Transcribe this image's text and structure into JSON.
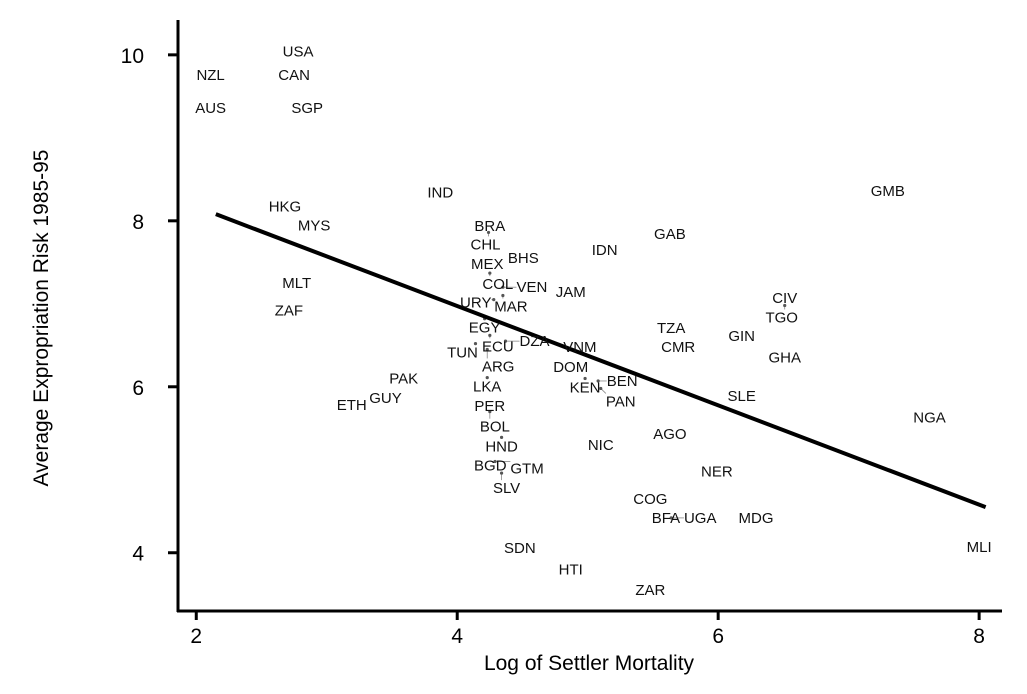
{
  "chart_data": {
    "type": "scatter",
    "title": "",
    "xlabel": "Log of Settler Mortality",
    "ylabel": "Average Expropriation Risk 1985-95",
    "xlim": [
      1.86,
      8.16
    ],
    "ylim": [
      3.31,
      10.42
    ],
    "xticks": [
      2,
      4,
      6,
      8
    ],
    "yticks": [
      4,
      6,
      8,
      10
    ],
    "grid": false,
    "points": [
      {
        "label": "USA",
        "x": 2.78,
        "y": 10.04
      },
      {
        "label": "NZL",
        "x": 2.11,
        "y": 9.76
      },
      {
        "label": "CAN",
        "x": 2.75,
        "y": 9.76
      },
      {
        "label": "AUS",
        "x": 2.11,
        "y": 9.36
      },
      {
        "label": "SGP",
        "x": 2.85,
        "y": 9.36
      },
      {
        "label": "IND",
        "x": 3.87,
        "y": 8.34
      },
      {
        "label": "HKG",
        "x": 2.68,
        "y": 8.17
      },
      {
        "label": "MYS",
        "x": 2.85,
        "y": 7.99
      },
      {
        "label": "GMB",
        "x": 7.3,
        "y": 8.36
      },
      {
        "label": "BRA",
        "x": 4.25,
        "y": 7.94
      },
      {
        "label": "CHL",
        "x": 4.24,
        "y": 7.86
      },
      {
        "label": "GAB",
        "x": 5.63,
        "y": 7.84
      },
      {
        "label": "IDN",
        "x": 5.13,
        "y": 7.65
      },
      {
        "label": "MEX",
        "x": 4.23,
        "y": 7.55
      },
      {
        "label": "BHS",
        "x": 4.43,
        "y": 7.55
      },
      {
        "label": "COL",
        "x": 4.25,
        "y": 7.37
      },
      {
        "label": "MLT",
        "x": 2.77,
        "y": 7.25
      },
      {
        "label": "JAM",
        "x": 4.87,
        "y": 7.14
      },
      {
        "label": "VEN",
        "x": 4.35,
        "y": 7.2
      },
      {
        "label": "MAR",
        "x": 4.35,
        "y": 7.1
      },
      {
        "label": "URY",
        "x": 4.28,
        "y": 7.05
      },
      {
        "label": "CIV",
        "x": 6.51,
        "y": 7.07
      },
      {
        "label": "TGO",
        "x": 6.51,
        "y": 6.98
      },
      {
        "label": "ZAF",
        "x": 2.71,
        "y": 6.92
      },
      {
        "label": "EGY",
        "x": 4.21,
        "y": 6.82
      },
      {
        "label": "TZA",
        "x": 5.64,
        "y": 6.71
      },
      {
        "label": "GIN",
        "x": 6.18,
        "y": 6.61
      },
      {
        "label": "ECU",
        "x": 4.25,
        "y": 6.62
      },
      {
        "label": "TUN",
        "x": 4.14,
        "y": 6.52
      },
      {
        "label": "ARG",
        "x": 4.23,
        "y": 6.45
      },
      {
        "label": "DZA",
        "x": 4.37,
        "y": 6.55
      },
      {
        "label": "CMR",
        "x": 5.64,
        "y": 6.53
      },
      {
        "label": "VNM",
        "x": 4.94,
        "y": 6.48
      },
      {
        "label": "GHA",
        "x": 6.51,
        "y": 6.35
      },
      {
        "label": "DOM",
        "x": 4.87,
        "y": 6.24
      },
      {
        "label": "PAK",
        "x": 3.59,
        "y": 6.1
      },
      {
        "label": "LKA",
        "x": 4.23,
        "y": 6.11
      },
      {
        "label": "KEN",
        "x": 4.98,
        "y": 6.1
      },
      {
        "label": "BEN",
        "x": 5.08,
        "y": 6.07
      },
      {
        "label": "PAN",
        "x": 5.1,
        "y": 5.98
      },
      {
        "label": "GUY",
        "x": 3.45,
        "y": 5.94
      },
      {
        "label": "SLE",
        "x": 6.18,
        "y": 5.89
      },
      {
        "label": "ETH",
        "x": 3.23,
        "y": 5.78
      },
      {
        "label": "PER",
        "x": 4.25,
        "y": 5.84
      },
      {
        "label": "BOL",
        "x": 4.25,
        "y": 5.7
      },
      {
        "label": "NGA",
        "x": 7.62,
        "y": 5.63
      },
      {
        "label": "AGO",
        "x": 5.63,
        "y": 5.43
      },
      {
        "label": "HND",
        "x": 4.34,
        "y": 5.39
      },
      {
        "label": "NIC",
        "x": 5.1,
        "y": 5.3
      },
      {
        "label": "BGD",
        "x": 4.2,
        "y": 5.1
      },
      {
        "label": "GTM",
        "x": 4.29,
        "y": 5.1
      },
      {
        "label": "SLV",
        "x": 4.34,
        "y": 4.96
      },
      {
        "label": "NER",
        "x": 5.99,
        "y": 4.98
      },
      {
        "label": "COG",
        "x": 5.48,
        "y": 4.65
      },
      {
        "label": "BFA",
        "x": 5.6,
        "y": 4.42
      },
      {
        "label": "UGA",
        "x": 5.64,
        "y": 4.42
      },
      {
        "label": "MDG",
        "x": 6.29,
        "y": 4.42
      },
      {
        "label": "SDN",
        "x": 4.48,
        "y": 4.06
      },
      {
        "label": "MLI",
        "x": 8.0,
        "y": 4.07
      },
      {
        "label": "HTI",
        "x": 4.87,
        "y": 3.8
      },
      {
        "label": "ZAR",
        "x": 5.48,
        "y": 3.55
      }
    ],
    "fit_line": {
      "x": [
        2.15,
        8.05
      ],
      "y": [
        8.08,
        4.55
      ]
    }
  }
}
